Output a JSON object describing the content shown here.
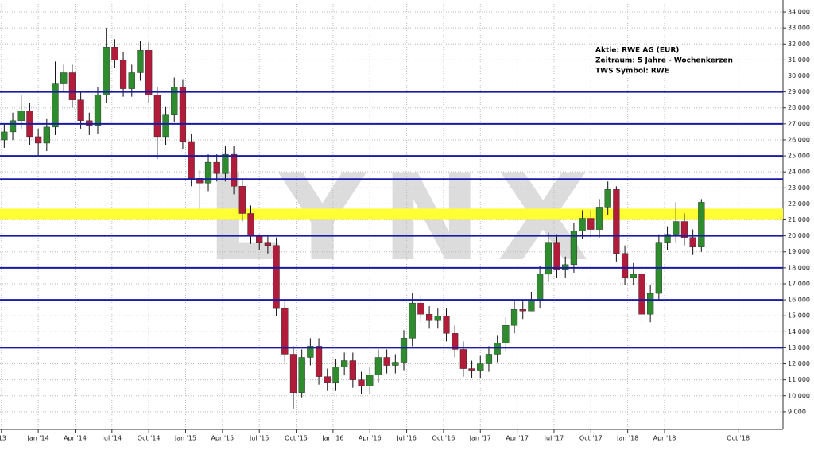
{
  "chart_data": {
    "type": "candlestick",
    "annotation": [
      "Aktie: RWE AG (EUR)",
      "Zeitraum: 5 Jahre - Wochenkerzen",
      "TWS Symbol: RWE"
    ],
    "watermark": "LYNX",
    "up_color": "#2e8b2e",
    "down_color": "#b01c3a",
    "grid": true,
    "x": [
      -12,
      -9,
      -6,
      -3,
      0,
      3,
      6,
      9,
      12,
      15,
      18,
      21,
      24,
      27,
      30,
      33,
      36,
      39,
      42,
      45,
      48,
      51,
      54,
      57,
      60,
      63,
      66,
      69,
      72,
      75,
      78,
      81,
      84,
      87,
      90,
      93,
      96,
      99,
      102,
      105,
      108,
      111,
      114,
      117,
      120,
      123,
      126,
      129,
      132,
      135,
      138,
      141,
      144,
      147,
      150,
      153,
      156,
      159,
      162,
      165,
      168,
      171,
      174,
      177,
      180,
      183,
      186,
      189,
      192,
      195,
      198,
      201,
      204,
      207,
      210,
      213,
      216,
      219,
      222,
      225,
      228,
      231,
      234
    ],
    "open": [
      26.0,
      26.5,
      27.2,
      27.8,
      26.2,
      25.8,
      26.8,
      29.5,
      30.2,
      28.5,
      27.2,
      26.9,
      28.8,
      31.8,
      31.0,
      29.2,
      30.2,
      31.6,
      28.8,
      26.2,
      27.6,
      29.3,
      25.9,
      23.6,
      23.3,
      24.6,
      23.9,
      25.1,
      23.1,
      21.4,
      20.0,
      19.6,
      19.4,
      15.5,
      12.6,
      10.2,
      12.4,
      13.1,
      11.2,
      10.8,
      11.8,
      12.2,
      11.0,
      10.6,
      11.3,
      12.4,
      11.9,
      12.1,
      13.6,
      15.8,
      15.1,
      14.7,
      15.0,
      13.9,
      12.9,
      11.7,
      11.6,
      12.0,
      12.6,
      13.3,
      14.4,
      15.4,
      15.3,
      16.0,
      17.6,
      19.6,
      17.9,
      18.2,
      20.3,
      21.1,
      20.4,
      21.8,
      22.9,
      18.9,
      17.4,
      17.6,
      15.1,
      16.4,
      19.6,
      20.1,
      20.9,
      19.9,
      19.3
    ],
    "high": [
      27.0,
      27.7,
      28.8,
      28.3,
      26.7,
      27.3,
      30.9,
      30.7,
      30.7,
      29.0,
      27.7,
      29.3,
      33.0,
      32.3,
      31.5,
      30.7,
      32.2,
      32.1,
      29.3,
      28.1,
      29.9,
      29.8,
      26.4,
      24.1,
      25.1,
      25.1,
      25.6,
      25.6,
      23.6,
      21.9,
      20.1,
      20.0,
      19.9,
      15.9,
      13.1,
      12.9,
      13.6,
      13.6,
      11.7,
      12.3,
      12.7,
      12.7,
      11.5,
      11.8,
      12.9,
      12.9,
      12.6,
      14.1,
      16.4,
      16.3,
      15.6,
      15.5,
      15.5,
      14.4,
      13.4,
      12.2,
      12.5,
      13.1,
      13.8,
      14.9,
      15.9,
      15.9,
      16.5,
      18.1,
      20.2,
      20.1,
      18.7,
      20.8,
      21.6,
      21.6,
      22.3,
      23.4,
      23.1,
      19.4,
      18.3,
      18.3,
      16.9,
      20.1,
      20.6,
      22.1,
      21.4,
      20.4,
      22.3
    ],
    "low": [
      25.5,
      26.0,
      26.7,
      25.7,
      25.0,
      25.3,
      26.3,
      29.0,
      28.0,
      26.7,
      26.3,
      26.4,
      28.3,
      30.5,
      28.7,
      28.7,
      29.7,
      28.3,
      24.8,
      25.7,
      27.1,
      25.4,
      23.1,
      21.7,
      22.8,
      23.4,
      23.4,
      22.6,
      20.9,
      19.5,
      19.1,
      18.9,
      15.0,
      12.1,
      9.2,
      9.9,
      11.9,
      10.7,
      10.3,
      10.3,
      11.3,
      10.5,
      10.1,
      10.1,
      10.8,
      11.4,
      11.4,
      11.6,
      13.1,
      14.6,
      14.2,
      14.2,
      13.4,
      12.4,
      11.2,
      11.1,
      11.1,
      11.5,
      12.1,
      12.8,
      13.9,
      14.8,
      15.3,
      15.5,
      17.1,
      17.4,
      17.4,
      17.7,
      19.8,
      19.9,
      19.9,
      21.3,
      18.4,
      16.9,
      16.9,
      14.6,
      14.6,
      15.9,
      19.1,
      19.6,
      19.4,
      18.8,
      19.0
    ],
    "close": [
      26.5,
      27.2,
      27.8,
      26.2,
      25.8,
      26.8,
      29.5,
      30.2,
      28.5,
      27.2,
      26.9,
      28.8,
      31.8,
      31.0,
      29.2,
      30.2,
      31.6,
      28.8,
      26.2,
      27.6,
      29.3,
      25.9,
      23.6,
      23.3,
      24.6,
      23.9,
      25.1,
      23.1,
      21.4,
      20.0,
      19.6,
      19.4,
      15.5,
      12.6,
      10.2,
      12.4,
      13.1,
      11.2,
      10.8,
      11.8,
      12.2,
      11.0,
      10.6,
      11.3,
      12.4,
      11.9,
      12.1,
      13.6,
      15.8,
      15.1,
      14.7,
      15.0,
      13.9,
      12.9,
      11.7,
      11.6,
      12.0,
      12.6,
      13.3,
      14.4,
      15.4,
      15.3,
      16.0,
      17.6,
      19.6,
      17.9,
      18.2,
      20.3,
      21.1,
      20.4,
      21.8,
      22.9,
      18.9,
      17.4,
      17.6,
      15.1,
      16.4,
      19.6,
      20.1,
      20.9,
      19.9,
      19.3,
      22.1
    ],
    "hlines": [
      29,
      27,
      25,
      23.55,
      20,
      18,
      16,
      13
    ],
    "hline_color": "#1a1aa6",
    "zone": [
      21.0,
      21.7
    ],
    "zone_color": "#ffff33",
    "xlim": [
      -13.5,
      262.8
    ],
    "xticks": [
      {
        "value": -13,
        "label": "'13"
      },
      {
        "value": 0,
        "label": "Jan '14"
      },
      {
        "value": 13,
        "label": "Apr '14"
      },
      {
        "value": 26,
        "label": "Jul '14"
      },
      {
        "value": 39,
        "label": "Oct '14"
      },
      {
        "value": 52,
        "label": "Jan '15"
      },
      {
        "value": 65,
        "label": "Apr '15"
      },
      {
        "value": 78,
        "label": "Jul '15"
      },
      {
        "value": 91,
        "label": "Oct '15"
      },
      {
        "value": 104,
        "label": "Jan '16"
      },
      {
        "value": 117,
        "label": "Apr '16"
      },
      {
        "value": 130,
        "label": "Jul '16"
      },
      {
        "value": 143,
        "label": "Oct '16"
      },
      {
        "value": 156,
        "label": "Jan '17"
      },
      {
        "value": 169,
        "label": "Apr '17"
      },
      {
        "value": 182,
        "label": "Jul '17"
      },
      {
        "value": 195,
        "label": "Oct '17"
      },
      {
        "value": 208,
        "label": "Jan '18"
      },
      {
        "value": 221,
        "label": "Apr '18"
      },
      {
        "value": 247,
        "label": "Oct '18"
      }
    ],
    "ylim": [
      7.9,
      34.5
    ],
    "yticks": [
      {
        "value": 9,
        "label": "9.000"
      },
      {
        "value": 10,
        "label": "10.000"
      },
      {
        "value": 11,
        "label": "11.000"
      },
      {
        "value": 12,
        "label": "12.000"
      },
      {
        "value": 13,
        "label": "13.000"
      },
      {
        "value": 14,
        "label": "14.000"
      },
      {
        "value": 15,
        "label": "15.000"
      },
      {
        "value": 16,
        "label": "16.000"
      },
      {
        "value": 17,
        "label": "17.000"
      },
      {
        "value": 18,
        "label": "18.000"
      },
      {
        "value": 19,
        "label": "19.000"
      },
      {
        "value": 20,
        "label": "20.000"
      },
      {
        "value": 21,
        "label": "21.000"
      },
      {
        "value": 22,
        "label": "22.000"
      },
      {
        "value": 23,
        "label": "23.000"
      },
      {
        "value": 24,
        "label": "24.000"
      },
      {
        "value": 25,
        "label": "25.000"
      },
      {
        "value": 26,
        "label": "26.000"
      },
      {
        "value": 27,
        "label": "27.000"
      },
      {
        "value": 28,
        "label": "28.000"
      },
      {
        "value": 29,
        "label": "29.000"
      },
      {
        "value": 30,
        "label": "30.000"
      },
      {
        "value": 31,
        "label": "31.000"
      },
      {
        "value": 32,
        "label": "32.000"
      },
      {
        "value": 33,
        "label": "33.000"
      },
      {
        "value": 34,
        "label": "34.000"
      }
    ]
  }
}
